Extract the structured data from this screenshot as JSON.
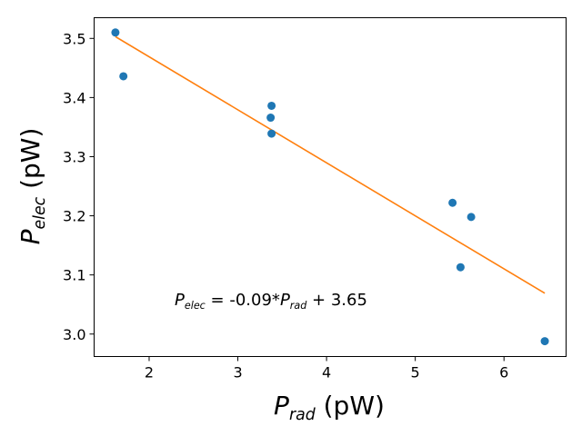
{
  "chart_data": {
    "type": "scatter",
    "xlim": [
      1.38,
      6.7
    ],
    "ylim": [
      2.962,
      3.535
    ],
    "xticks": [
      2,
      3,
      4,
      5,
      6
    ],
    "yticks": [
      3.0,
      3.1,
      3.2,
      3.3,
      3.4,
      3.5
    ],
    "xtick_labels": [
      "2",
      "3",
      "4",
      "5",
      "6"
    ],
    "ytick_labels": [
      "3.0",
      "3.1",
      "3.2",
      "3.3",
      "3.4",
      "3.5"
    ],
    "xlabel": {
      "main": "P",
      "sub": "rad",
      "unit": " (pW)"
    },
    "ylabel": {
      "main": "P",
      "sub": "elec",
      "unit": " (pW)"
    },
    "points": [
      {
        "x": 1.62,
        "y": 3.51
      },
      {
        "x": 1.71,
        "y": 3.436
      },
      {
        "x": 3.38,
        "y": 3.386
      },
      {
        "x": 3.37,
        "y": 3.366
      },
      {
        "x": 3.38,
        "y": 3.339
      },
      {
        "x": 5.42,
        "y": 3.222
      },
      {
        "x": 5.63,
        "y": 3.198
      },
      {
        "x": 5.51,
        "y": 3.113
      },
      {
        "x": 6.46,
        "y": 2.988
      }
    ],
    "fit": {
      "x0": 1.62,
      "y0": 3.503,
      "x1": 6.46,
      "y1": 3.069
    },
    "annotation": {
      "lhs_main": "P",
      "lhs_sub": "elec",
      "middle": " = -0.09*",
      "rhs_main": "P",
      "rhs_sub": "rad",
      "tail": " + 3.65"
    },
    "colors": {
      "points": "#1f77b4",
      "fit": "#ff7f0e"
    },
    "grid": false
  }
}
